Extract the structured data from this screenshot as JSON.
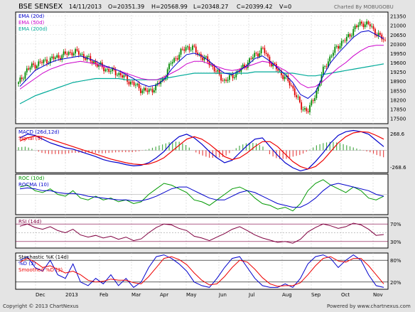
{
  "header": {
    "symbol": "BSE SENSEX",
    "date": "14/11/2013",
    "open": "O=20351.39",
    "high": "H=20568.99",
    "low": "L=20348.27",
    "close": "C=20399.42",
    "volume": "V=0",
    "charted_by": "Charted By MOBUGOBU"
  },
  "footer": {
    "copyright": "Copyright © 2013 ChartNexus",
    "powered": "Powered by www.chartnexus.com"
  },
  "colors": {
    "ema20": "#0000cc",
    "ema50": "#cc00cc",
    "ema200": "#00aa99",
    "macd": "#0000cc",
    "signal": "#ee0000",
    "roc": "#009900",
    "rocma": "#0000cc",
    "rsi": "#800040",
    "stoch_k": "#0000cc",
    "stoch_d": "#ee0000",
    "up_candle": "#008800",
    "down_candle": "#dd0000"
  },
  "chart_data": [
    {
      "type": "candlestick",
      "title": "BSE SENSEX",
      "legend": [
        "EMA (20d)",
        "EMA (50d)",
        "EMA (200d)"
      ],
      "x_labels": [
        "Dec",
        "2013",
        "Feb",
        "Mar",
        "Apr",
        "May",
        "Jun",
        "Jul",
        "Aug",
        "Sep",
        "Oct",
        "Nov"
      ],
      "y_ticks": [
        21350,
        21000,
        20650,
        20300,
        19950,
        19600,
        19250,
        18900,
        18550,
        18200,
        17850,
        17500
      ],
      "ylim": [
        17300,
        21500
      ],
      "close_path": [
        18800,
        19300,
        19500,
        19600,
        19700,
        19800,
        19900,
        20000,
        19950,
        19750,
        19600,
        19400,
        19300,
        19200,
        19000,
        18800,
        18600,
        18500,
        18700,
        19000,
        19600,
        19900,
        20200,
        20100,
        19800,
        19600,
        19200,
        18900,
        19100,
        19300,
        19600,
        19900,
        20100,
        19600,
        19300,
        19000,
        18600,
        17900,
        17800,
        18500,
        19400,
        19900,
        20300,
        20500,
        20900,
        21100,
        21000,
        20650,
        20400
      ],
      "ema20": [
        18700,
        19000,
        19300,
        19450,
        19600,
        19700,
        19750,
        19800,
        19850,
        19750,
        19650,
        19500,
        19400,
        19300,
        19150,
        19000,
        18800,
        18700,
        18750,
        18950,
        19350,
        19650,
        19900,
        19950,
        19850,
        19650,
        19400,
        19200,
        19150,
        19300,
        19500,
        19750,
        19850,
        19650,
        19400,
        19150,
        18850,
        18400,
        18250,
        18500,
        19100,
        19600,
        19950,
        20250,
        20550,
        20750,
        20800,
        20650,
        20500
      ],
      "ema50": [
        18600,
        18800,
        19000,
        19200,
        19350,
        19450,
        19550,
        19600,
        19650,
        19600,
        19550,
        19450,
        19400,
        19300,
        19200,
        19100,
        19000,
        18950,
        18950,
        19050,
        19200,
        19350,
        19550,
        19650,
        19650,
        19550,
        19450,
        19350,
        19300,
        19350,
        19450,
        19550,
        19650,
        19600,
        19450,
        19300,
        19100,
        18800,
        18650,
        18700,
        18900,
        19150,
        19400,
        19600,
        19850,
        20050,
        20200,
        20250,
        20250
      ],
      "ema200": [
        18050,
        18200,
        18350,
        18450,
        18550,
        18650,
        18750,
        18850,
        18900,
        18950,
        19000,
        19000,
        19000,
        19000,
        18950,
        18950,
        18950,
        18950,
        18950,
        19000,
        19050,
        19100,
        19150,
        19200,
        19200,
        19200,
        19200,
        19200,
        19200,
        19200,
        19200,
        19250,
        19250,
        19250,
        19250,
        19200,
        19200,
        19150,
        19100,
        19100,
        19150,
        19200,
        19250,
        19300,
        19350,
        19400,
        19450,
        19500,
        19550
      ]
    },
    {
      "type": "line",
      "title": "MACD (26d,12d)",
      "legend": [
        "MACD (26d,12d)",
        "Signal (9)"
      ],
      "y_ticks": [
        "268.6",
        "-268.6"
      ],
      "macd": [
        200,
        260,
        240,
        180,
        120,
        80,
        40,
        20,
        -20,
        -60,
        -100,
        -150,
        -180,
        -200,
        -230,
        -250,
        -240,
        -200,
        -120,
        -20,
        120,
        220,
        260,
        200,
        100,
        -20,
        -120,
        -200,
        -160,
        -40,
        80,
        180,
        200,
        60,
        -80,
        -200,
        -280,
        -330,
        -300,
        -180,
        -40,
        120,
        240,
        300,
        320,
        300,
        260,
        160,
        60
      ],
      "signal": [
        150,
        200,
        230,
        220,
        180,
        140,
        100,
        60,
        20,
        -20,
        -60,
        -100,
        -140,
        -170,
        -200,
        -220,
        -230,
        -220,
        -180,
        -120,
        -20,
        80,
        180,
        220,
        180,
        100,
        0,
        -100,
        -150,
        -120,
        -40,
        60,
        140,
        140,
        60,
        -60,
        -180,
        -260,
        -300,
        -260,
        -160,
        -20,
        120,
        220,
        280,
        300,
        290,
        240,
        180
      ]
    },
    {
      "type": "line",
      "title": "ROC (10d)",
      "legend": [
        "ROC (10d)",
        "ROCMA (10)"
      ],
      "roc": [
        4,
        5,
        2,
        1,
        3,
        0,
        -1,
        2,
        -2,
        -3,
        -1,
        -3,
        -2,
        -4,
        -3,
        -5,
        -4,
        0,
        3,
        6,
        5,
        3,
        1,
        -3,
        -4,
        -6,
        -3,
        0,
        3,
        4,
        2,
        -2,
        -5,
        -6,
        -8,
        -7,
        -9,
        -5,
        2,
        6,
        8,
        5,
        3,
        1,
        4,
        2,
        -2,
        -3,
        -1
      ],
      "rocma": [
        3,
        3.5,
        3,
        2,
        2,
        1,
        0.5,
        0.5,
        0,
        -1,
        -1.5,
        -2,
        -2.5,
        -3,
        -3,
        -3.5,
        -3.5,
        -2.5,
        -1,
        1,
        3,
        4,
        4,
        2,
        0,
        -2,
        -3,
        -3,
        -1,
        1,
        2,
        1,
        -1,
        -3,
        -5,
        -6,
        -7,
        -7,
        -5,
        -2,
        2,
        5,
        6,
        5,
        4,
        3,
        2,
        0,
        -1
      ]
    },
    {
      "type": "line",
      "title": "RSI (14d)",
      "y_ticks": [
        "70%",
        "30%"
      ],
      "rsi": [
        65,
        70,
        62,
        58,
        64,
        55,
        50,
        58,
        45,
        40,
        44,
        38,
        42,
        35,
        40,
        32,
        36,
        50,
        62,
        70,
        68,
        60,
        55,
        42,
        38,
        32,
        40,
        48,
        58,
        64,
        55,
        45,
        38,
        33,
        28,
        30,
        26,
        35,
        52,
        62,
        70,
        66,
        60,
        64,
        72,
        68,
        58,
        44,
        46
      ]
    },
    {
      "type": "line",
      "title": "Stochastic %K (14d)",
      "legend": [
        "Stochastic %K (14d)",
        "%D (3)",
        "Smoothed %D (3)"
      ],
      "y_ticks": [
        "80%",
        "20%"
      ],
      "k": [
        80,
        90,
        60,
        50,
        80,
        40,
        30,
        70,
        20,
        10,
        30,
        15,
        40,
        10,
        30,
        5,
        20,
        60,
        90,
        95,
        85,
        70,
        50,
        20,
        10,
        5,
        30,
        60,
        85,
        90,
        60,
        30,
        10,
        5,
        5,
        15,
        5,
        30,
        70,
        90,
        95,
        85,
        60,
        80,
        95,
        80,
        40,
        10,
        5
      ],
      "d": [
        75,
        85,
        75,
        60,
        65,
        55,
        45,
        50,
        40,
        25,
        20,
        22,
        28,
        25,
        25,
        18,
        15,
        35,
        60,
        85,
        90,
        82,
        68,
        45,
        25,
        12,
        15,
        35,
        60,
        80,
        75,
        55,
        32,
        15,
        8,
        10,
        10,
        18,
        40,
        65,
        85,
        90,
        78,
        75,
        85,
        85,
        65,
        40,
        15
      ]
    }
  ]
}
